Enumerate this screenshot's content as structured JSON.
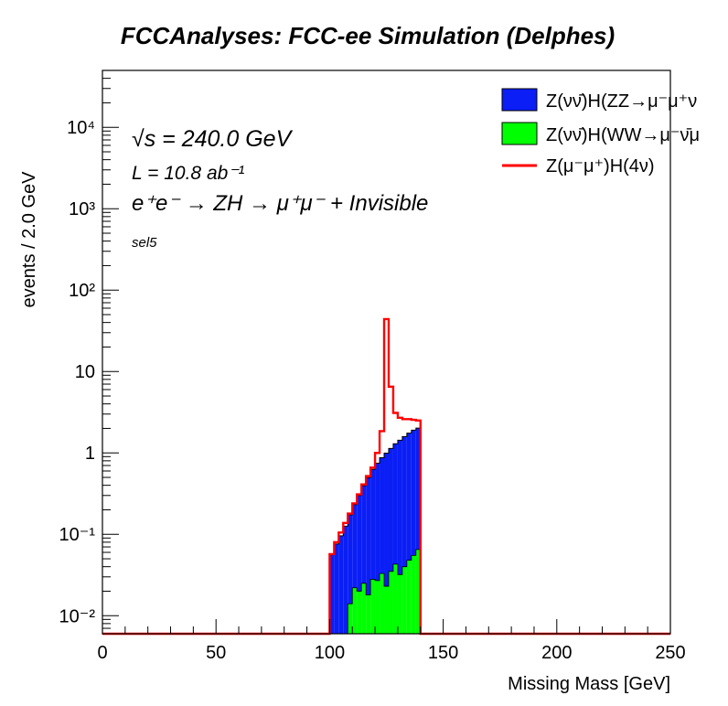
{
  "title": "FCCAnalyses: FCC-ee Simulation (Delphes)",
  "annotations": {
    "sqrt_s": "√s = 240.0 GeV",
    "lumi": "L = 10.8 ab⁻¹",
    "process": "e⁺e⁻ → ZH → μ⁺μ⁻ + Invisible",
    "selection": "sel5"
  },
  "legend": [
    {
      "label": "Z(νν̄)H(ZZ→μ⁻μ⁺ν",
      "color": "#0a1ef5",
      "kind": "fill"
    },
    {
      "label": "Z(νν̄)H(WW→μ⁻ν̄μ",
      "color": "#00ff00",
      "kind": "fill"
    },
    {
      "label": "Z(μ⁻μ⁺)H(4ν)",
      "color": "#ff0000",
      "kind": "line"
    }
  ],
  "colors": {
    "zz": "#0a1ef5",
    "ww": "#00ff00",
    "signal": "#ff0000",
    "frame": "#000000"
  },
  "chart_data": {
    "type": "histogram",
    "title": "FCCAnalyses: FCC-ee Simulation (Delphes)",
    "xlabel": "Missing Mass [GeV]",
    "ylabel": "events / 2.0 GeV",
    "xlim": [
      0,
      250
    ],
    "ylim": [
      0.006,
      50000
    ],
    "yscale": "log",
    "x_ticks": [
      "0",
      "50",
      "100",
      "150",
      "200",
      "250"
    ],
    "y_ticks": [
      "10⁻²",
      "10⁻¹",
      "1",
      "10",
      "10²",
      "10³",
      "10⁴"
    ],
    "bin_width": 2.0,
    "bin_edges_range": [
      100,
      140
    ],
    "stacked": true,
    "series": [
      {
        "name": "Z(νν̄)H(WW→μ⁻ν̄μ",
        "style": "filled",
        "values": [
          0.006,
          0.006,
          0.006,
          0.006,
          0.014,
          0.022,
          0.02,
          0.025,
          0.018,
          0.028,
          0.027,
          0.033,
          0.023,
          0.035,
          0.043,
          0.032,
          0.04,
          0.048,
          0.055,
          0.065
        ]
      },
      {
        "name": "Z(νν̄)H(ZZ→μ⁻μ⁺ν",
        "style": "filled",
        "values": [
          0.05,
          0.07,
          0.09,
          0.12,
          0.16,
          0.21,
          0.28,
          0.37,
          0.48,
          0.6,
          0.72,
          0.84,
          0.97,
          1.1,
          1.25,
          1.4,
          1.55,
          1.7,
          1.85,
          1.95
        ]
      },
      {
        "name": "Z(μ⁻μ⁺)H(4ν)",
        "style": "line",
        "values": [
          0.057,
          0.08,
          0.105,
          0.138,
          0.18,
          0.24,
          0.31,
          0.41,
          0.52,
          0.66,
          1.0,
          1.85,
          44.0,
          6.5,
          3.1,
          2.7,
          2.6,
          2.6,
          2.55,
          2.5
        ]
      }
    ]
  }
}
